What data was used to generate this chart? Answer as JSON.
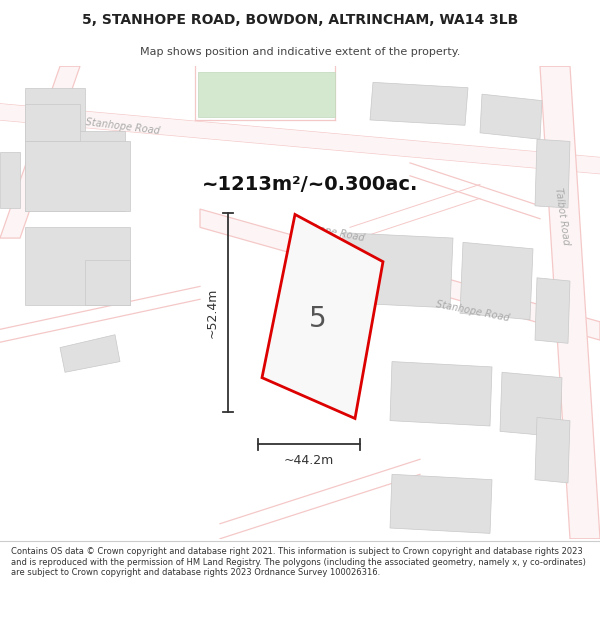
{
  "title_line1": "5, STANHOPE ROAD, BOWDON, ALTRINCHAM, WA14 3LB",
  "title_line2": "Map shows position and indicative extent of the property.",
  "area_text": "~1213m²/~0.300ac.",
  "label_number": "5",
  "dim_width": "~44.2m",
  "dim_height": "~52.4m",
  "footer_text": "Contains OS data © Crown copyright and database right 2021. This information is subject to Crown copyright and database rights 2023 and is reproduced with the permission of HM Land Registry. The polygons (including the associated geometry, namely x, y co-ordinates) are subject to Crown copyright and database rights 2023 Ordnance Survey 100026316.",
  "map_bg": "#ffffff",
  "road_color": "#f5c8c8",
  "building_fill": "#e0e0e0",
  "building_edge": "#c8c8c8",
  "green_fill": "#d4e8d0",
  "green_edge": "#c0d8bc",
  "property_color": "#dd0000",
  "dim_color": "#333333",
  "road_label_color": "#aaaaaa",
  "title_color": "#222222",
  "subtitle_color": "#444444",
  "footer_color": "#333333"
}
